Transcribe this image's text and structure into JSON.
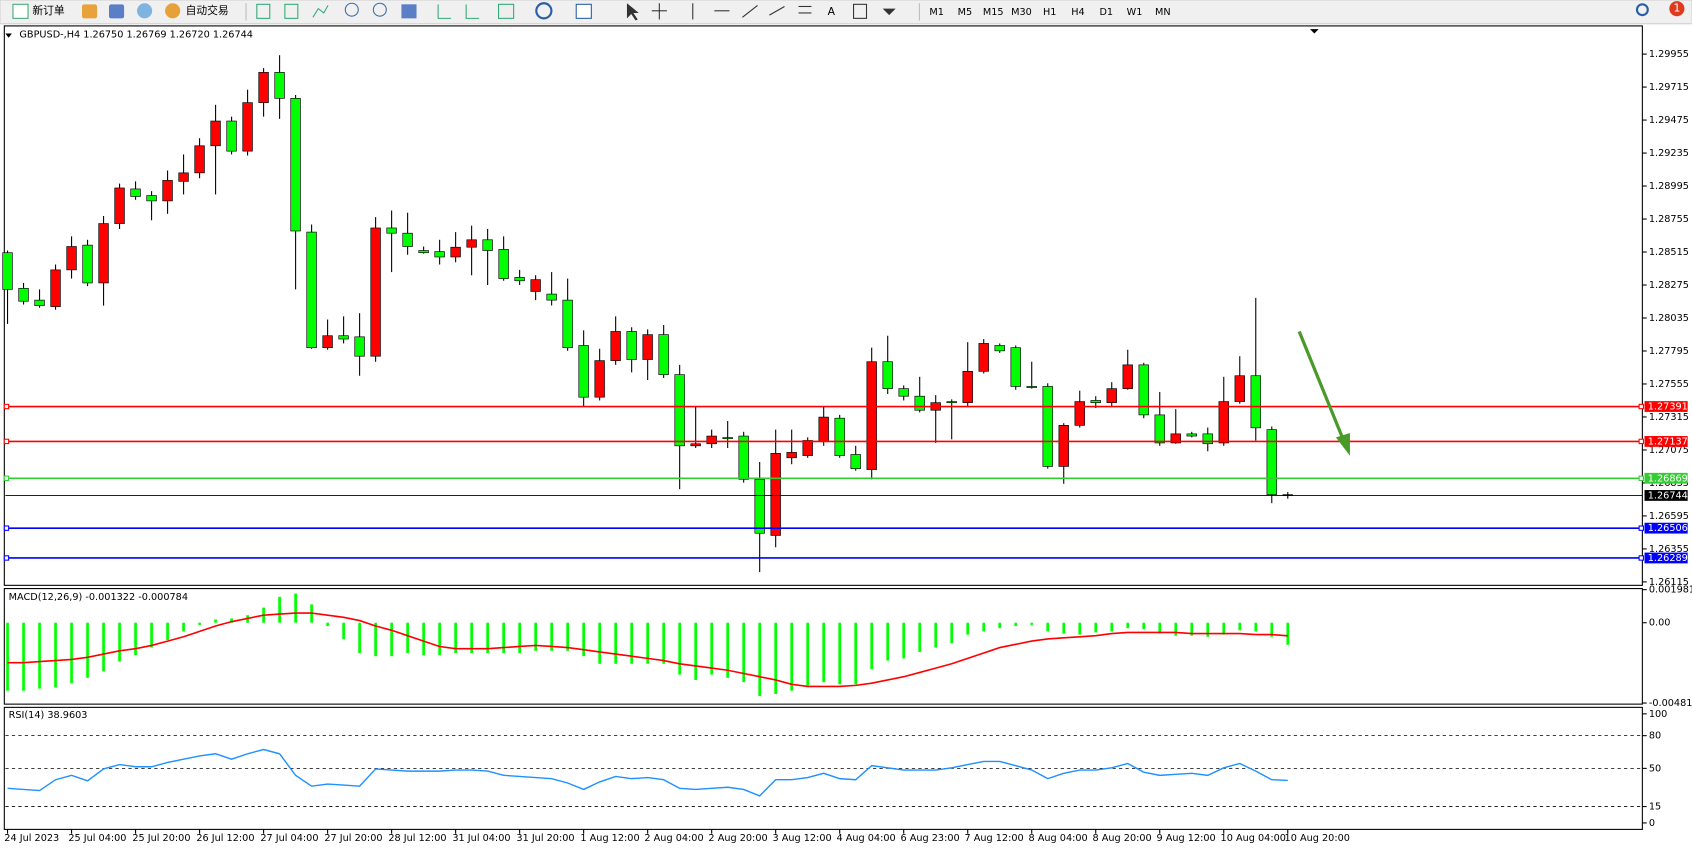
{
  "toolbar": {
    "new_order": "新订单",
    "auto_trade": "自动交易",
    "timeframes": [
      "M1",
      "M5",
      "M15",
      "M30",
      "H1",
      "H4",
      "D1",
      "W1",
      "MN"
    ],
    "text_tool": "A",
    "alert_count": "1"
  },
  "chart_data": [
    {
      "type": "candlestick",
      "title": "GBPUSD-,H4  1.26750 1.26769 1.26720 1.26744",
      "categories": [
        "24 Jul 2023",
        null,
        null,
        null,
        "25 Jul 04:00",
        null,
        null,
        null,
        "25 Jul 20:00",
        null,
        null,
        null,
        "26 Jul 12:00",
        null,
        null,
        null,
        "27 Jul 04:00",
        null,
        null,
        null,
        "27 Jul 20:00",
        null,
        null,
        null,
        "28 Jul 12:00",
        null,
        null,
        null,
        "31 Jul 04:00",
        null,
        null,
        null,
        "31 Jul 20:00",
        null,
        null,
        null,
        "1 Aug 12:00",
        null,
        null,
        null,
        "2 Aug 04:00",
        null,
        null,
        null,
        "2 Aug 20:00",
        null,
        null,
        null,
        "3 Aug 12:00",
        null,
        null,
        null,
        "4 Aug 04:00",
        null,
        null,
        null,
        "6 Aug 23:00",
        null,
        null,
        null,
        "7 Aug 12:00",
        null,
        null,
        null,
        "8 Aug 04:00",
        null,
        null,
        null,
        "8 Aug 20:00",
        null,
        null,
        null,
        "9 Aug 12:00",
        null,
        null,
        null,
        "10 Aug 04:00",
        null,
        null,
        null,
        "10 Aug 20:00"
      ],
      "open": [
        1.2851,
        1.28251,
        1.28165,
        1.28118,
        1.28385,
        1.28565,
        1.2829,
        1.28722,
        1.28974,
        1.28926,
        1.28887,
        1.29029,
        1.29091,
        1.29288,
        1.29468,
        1.29249,
        1.29602,
        1.29822,
        1.29633,
        1.2866,
        1.27819,
        1.27906,
        1.27898,
        1.27757,
        1.2869,
        1.28652,
        1.28526,
        1.28518,
        1.28479,
        1.2855,
        1.28604,
        1.28534,
        1.2833,
        1.28228,
        1.28209,
        1.28165,
        1.27835,
        1.27459,
        1.27725,
        1.27937,
        1.27733,
        1.27914,
        1.27623,
        1.27105,
        1.2712,
        1.27165,
        1.27176,
        1.26861,
        1.26453,
        1.27018,
        1.27034,
        1.27136,
        1.27306,
        1.27042,
        1.26932,
        1.27717,
        1.27521,
        1.27466,
        1.27364,
        1.27427,
        1.27419,
        1.27647,
        1.27835,
        1.27819,
        1.27537,
        1.27537,
        1.26955,
        1.27254,
        1.27435,
        1.27419,
        1.27521,
        1.27694,
        1.2733,
        1.27126,
        1.27192,
        1.27192,
        1.27126,
        1.27427,
        1.27615,
        1.27223,
        1.2675
      ],
      "high": [
        1.28526,
        1.2829,
        1.28243,
        1.28424,
        1.28629,
        1.28604,
        1.28777,
        1.29013,
        1.29029,
        1.28958,
        1.29108,
        1.29225,
        1.29343,
        1.29586,
        1.295,
        1.29696,
        1.29853,
        1.29947,
        1.29657,
        1.28715,
        1.28024,
        1.28047,
        1.2807,
        1.28769,
        1.28817,
        1.28801,
        1.28555,
        1.28604,
        1.2866,
        1.28707,
        1.28683,
        1.28629,
        1.28385,
        1.28346,
        1.28369,
        1.28322,
        1.27945,
        1.27811,
        1.28047,
        1.27968,
        1.27952,
        1.27984,
        1.27694,
        1.27395,
        1.27223,
        1.27285,
        1.27207,
        1.26987,
        1.27223,
        1.27223,
        1.27167,
        1.27389,
        1.2733,
        1.27105,
        1.27819,
        1.27906,
        1.27545,
        1.27607,
        1.27474,
        1.27443,
        1.27859,
        1.27882,
        1.2785,
        1.27835,
        1.27717,
        1.2756,
        1.2727,
        1.27506,
        1.27466,
        1.27568,
        1.27804,
        1.27709,
        1.27497,
        1.27372,
        1.27207,
        1.27238,
        1.27607,
        1.27757,
        1.28181,
        1.27246,
        1.26769
      ],
      "low": [
        1.27992,
        1.28133,
        1.2811,
        1.28095,
        1.28322,
        1.28267,
        1.28125,
        1.28683,
        1.28895,
        1.28746,
        1.28793,
        1.28934,
        1.29052,
        1.28934,
        1.29225,
        1.29217,
        1.295,
        1.29484,
        1.28243,
        1.27811,
        1.27804,
        1.2785,
        1.27615,
        1.27717,
        1.28369,
        1.28495,
        1.28503,
        1.28424,
        1.2844,
        1.28346,
        1.28275,
        1.28306,
        1.28275,
        1.28165,
        1.28126,
        1.27796,
        1.27389,
        1.27435,
        1.27694,
        1.27639,
        1.27584,
        1.27599,
        1.2679,
        1.27089,
        1.27089,
        1.27089,
        1.26837,
        1.26186,
        1.26367,
        1.26971,
        1.27018,
        1.27105,
        1.27018,
        1.26924,
        1.26861,
        1.27482,
        1.27435,
        1.27348,
        1.27126,
        1.27152,
        1.27395,
        1.27631,
        1.27781,
        1.27513,
        1.27521,
        1.26939,
        1.26829,
        1.27238,
        1.2738,
        1.27389,
        1.27513,
        1.27306,
        1.27105,
        1.2712,
        1.27167,
        1.27065,
        1.27105,
        1.27411,
        1.27144,
        1.26688,
        1.2672
      ],
      "close": [
        1.28243,
        1.28157,
        1.28125,
        1.28385,
        1.28555,
        1.2829,
        1.28722,
        1.28981,
        1.28919,
        1.28887,
        1.29036,
        1.29091,
        1.29288,
        1.29468,
        1.29249,
        1.29602,
        1.29822,
        1.29633,
        1.28668,
        1.27819,
        1.27906,
        1.27882,
        1.27757,
        1.2869,
        1.28652,
        1.28555,
        1.2851,
        1.28479,
        1.2855,
        1.28604,
        1.28526,
        1.28322,
        1.28306,
        1.28314,
        1.28165,
        1.27819,
        1.27459,
        1.27725,
        1.27937,
        1.27733,
        1.27914,
        1.27623,
        1.27105,
        1.2712,
        1.27176,
        1.27159,
        1.26861,
        1.26469,
        1.2705,
        1.27057,
        1.27144,
        1.27314,
        1.27034,
        1.26939,
        1.27717,
        1.27521,
        1.27466,
        1.27364,
        1.27419,
        1.27419,
        1.27647,
        1.2785,
        1.27796,
        1.27537,
        1.27529,
        1.26955,
        1.27254,
        1.27427,
        1.27419,
        1.27521,
        1.27694,
        1.2733,
        1.27126,
        1.27192,
        1.27176,
        1.2712,
        1.27427,
        1.27615,
        1.27236,
        1.2675,
        1.26744
      ],
      "up_color": "#ff0000",
      "down_color": "#00ff00",
      "wick_color": "#000000",
      "ylim": [
        1.2609,
        1.3016
      ],
      "yticks": [
        1.29955,
        1.29715,
        1.29475,
        1.29235,
        1.28995,
        1.28755,
        1.28515,
        1.28275,
        1.28035,
        1.27795,
        1.27555,
        1.27315,
        1.27075,
        1.26835,
        1.26595,
        1.26355,
        1.26115
      ],
      "levels": [
        {
          "value": 1.27391,
          "color": "#ff0000"
        },
        {
          "value": 1.27137,
          "color": "#ff0000"
        },
        {
          "value": 1.26869,
          "color": "#33cc33"
        },
        {
          "value": 1.26506,
          "color": "#0000ff"
        },
        {
          "value": 1.26289,
          "color": "#0000ff"
        }
      ],
      "last_price": 1.26744
    },
    {
      "type": "macd",
      "title": "MACD(12,26,9) -0.001322 -0.000784",
      "values": [
        -0.004075,
        -0.004075,
        -0.003946,
        -0.003881,
        -0.003622,
        -0.003299,
        -0.002911,
        -0.002329,
        -0.00194,
        -0.001488,
        -0.001035,
        -0.000517,
        -0.000129,
        0.000194,
        0.000259,
        0.000453,
        0.000906,
        0.001552,
        0.001746,
        0.0011,
        -0.000194,
        -0.00097,
        -0.001811,
        -0.002005,
        -0.002005,
        -0.001811,
        -0.00194,
        -0.00194,
        -0.001811,
        -0.001811,
        -0.001811,
        -0.001811,
        -0.001811,
        -0.001682,
        -0.001682,
        -0.001682,
        -0.002005,
        -0.002458,
        -0.002458,
        -0.002458,
        -0.002458,
        -0.002458,
        -0.003105,
        -0.003428,
        -0.003105,
        -0.003299,
        -0.003558,
        -0.004398,
        -0.004269,
        -0.004075,
        -0.003752,
        -0.003558,
        -0.003687,
        -0.003687,
        -0.002781,
        -0.002264,
        -0.002135,
        -0.001746,
        -0.001488,
        -0.001229,
        -0.000712,
        -0.000517,
        -0.000323,
        -0.000194,
        -0.000129,
        -0.000517,
        -0.000647,
        -0.000712,
        -0.000582,
        -0.000517,
        -0.000323,
        -0.000388,
        -0.000647,
        -0.000776,
        -0.000776,
        -0.000841,
        -0.000712,
        -0.000453,
        -0.000517,
        -0.000841,
        -0.001322
      ],
      "signal": [
        -0.002393,
        -0.002393,
        -0.002329,
        -0.002264,
        -0.002199,
        -0.00207,
        -0.001876,
        -0.001682,
        -0.001552,
        -0.001358,
        -0.0011,
        -0.000841,
        -0.000517,
        -0.000194,
        6.5e-05,
        0.000259,
        0.000453,
        0.000517,
        0.000582,
        0.000582,
        0.000453,
        0.000323,
        0.000129,
        -0.000194,
        -0.000453,
        -0.000776,
        -0.0011,
        -0.001423,
        -0.001552,
        -0.001552,
        -0.001552,
        -0.001488,
        -0.001423,
        -0.001358,
        -0.001423,
        -0.001488,
        -0.001617,
        -0.001746,
        -0.001876,
        -0.002005,
        -0.002135,
        -0.002264,
        -0.002458,
        -0.002587,
        -0.002717,
        -0.002846,
        -0.00304,
        -0.003234,
        -0.003428,
        -0.003687,
        -0.003816,
        -0.003816,
        -0.003816,
        -0.003752,
        -0.003622,
        -0.003428,
        -0.003234,
        -0.002975,
        -0.002717,
        -0.002458,
        -0.002135,
        -0.001811,
        -0.001488,
        -0.001294,
        -0.0011,
        -0.00097,
        -0.000906,
        -0.000841,
        -0.000776,
        -0.000647,
        -0.000582,
        -0.000582,
        -0.000582,
        -0.000582,
        -0.000647,
        -0.000647,
        -0.000647,
        -0.000647,
        -0.000712,
        -0.000712,
        -0.000784
      ],
      "color": "#00ff00",
      "signal_color": "#ff0000",
      "ylim": [
        -0.00481,
        0.001981
      ],
      "yticks": [
        0.001981,
        {
          "value": 0,
          "label": "0.00"
        },
        -0.00481
      ]
    },
    {
      "type": "rsi",
      "title": "RSI(14) 38.9603",
      "values": [
        31.7,
        30.7,
        29.7,
        39.6,
        43.6,
        38.6,
        49.5,
        53.5,
        51.5,
        51.5,
        55.4,
        58.4,
        61.4,
        63.4,
        58.4,
        63.4,
        67.3,
        63.4,
        43.6,
        33.7,
        35.6,
        34.7,
        33.7,
        49.5,
        48.5,
        47.5,
        47.5,
        47.5,
        48.5,
        48.5,
        47.5,
        43.6,
        42.6,
        41.6,
        40.6,
        36.6,
        30.7,
        37.6,
        42.6,
        40.6,
        41.6,
        39.6,
        31.7,
        30.7,
        31.7,
        32.7,
        30.7,
        24.8,
        39.6,
        39.6,
        41.6,
        45.5,
        40.6,
        39.6,
        52.5,
        50.5,
        48.5,
        48.5,
        48.5,
        50.5,
        53.5,
        56.4,
        56.4,
        52.5,
        48.5,
        40.6,
        45.5,
        48.5,
        48.5,
        50.5,
        54.5,
        46.5,
        43.6,
        44.6,
        45.5,
        43.6,
        50.5,
        54.5,
        47.5,
        39.6,
        38.9603
      ],
      "color": "#1e90ff",
      "ylim": [
        0,
        100
      ],
      "yticks": [
        100,
        80,
        50,
        15,
        0
      ],
      "levels": [
        80,
        50,
        15
      ]
    }
  ]
}
